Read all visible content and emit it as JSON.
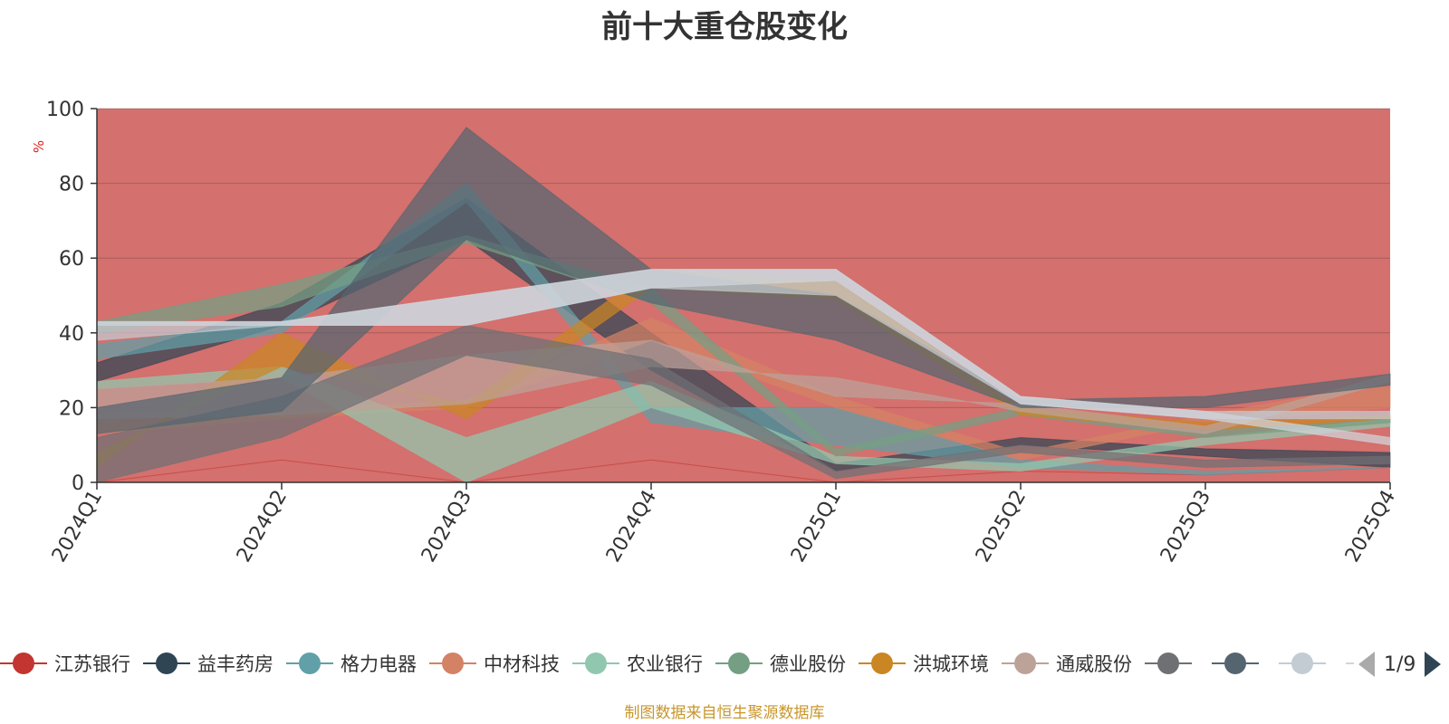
{
  "chart_data": {
    "type": "area",
    "title": "前十大重仓股变化",
    "ylabel": "%",
    "ylim": [
      0,
      100
    ],
    "yticks": [
      "0",
      "20",
      "40",
      "60",
      "80",
      "100"
    ],
    "categories": [
      "2024Q1",
      "2024Q2",
      "2024Q3",
      "2024Q4",
      "2025Q1",
      "2025Q2",
      "2025Q3",
      "2025Q4"
    ],
    "legend_position": "bottom",
    "legend_page": "1/9",
    "series": [
      {
        "name": "江苏银行",
        "color": "#c23531",
        "bounds": [
          [
            0,
            0
          ],
          [
            6,
            6
          ],
          [
            0,
            0
          ],
          [
            6,
            6
          ],
          [
            0,
            0
          ],
          [
            3,
            3
          ],
          [
            2,
            2
          ],
          [
            4,
            4
          ]
        ]
      },
      {
        "name": "益丰药房",
        "color": "#2f4554",
        "bounds": [
          [
            27,
            32
          ],
          [
            42,
            48
          ],
          [
            65,
            76
          ],
          [
            30,
            40
          ],
          [
            3,
            5
          ],
          [
            10,
            12
          ],
          [
            7,
            9
          ],
          [
            4,
            8
          ]
        ]
      },
      {
        "name": "格力电器",
        "color": "#61a0a8",
        "bounds": [
          [
            33,
            37
          ],
          [
            40,
            43
          ],
          [
            75,
            80
          ],
          [
            16,
            20
          ],
          [
            10,
            20
          ],
          [
            4,
            6
          ],
          [
            2,
            3
          ],
          [
            4,
            4
          ]
        ]
      },
      {
        "name": "中材科技",
        "color": "#d48265",
        "bounds": [
          [
            13,
            18
          ],
          [
            17,
            19
          ],
          [
            20,
            22
          ],
          [
            38,
            44
          ],
          [
            20,
            23
          ],
          [
            6,
            8
          ],
          [
            16,
            18
          ],
          [
            20,
            27
          ]
        ]
      },
      {
        "name": "农业银行",
        "color": "#91c7ae",
        "bounds": [
          [
            25,
            27
          ],
          [
            28,
            31
          ],
          [
            0,
            12
          ],
          [
            20,
            27
          ],
          [
            5,
            7
          ],
          [
            3,
            5
          ],
          [
            10,
            12
          ],
          [
            15,
            17
          ]
        ]
      },
      {
        "name": "德业股份",
        "color": "#749f83",
        "bounds": [
          [
            40,
            43
          ],
          [
            47,
            53
          ],
          [
            64,
            66
          ],
          [
            48,
            52
          ],
          [
            7,
            9
          ],
          [
            18,
            20
          ],
          [
            12,
            14
          ],
          [
            16,
            17
          ]
        ]
      },
      {
        "name": "洪城环境",
        "color": "#ca8622",
        "bounds": [
          [
            4,
            8
          ],
          [
            40,
            31
          ],
          [
            17,
            21
          ],
          [
            52,
            57
          ],
          [
            49,
            54
          ],
          [
            18,
            20
          ],
          [
            14,
            16
          ],
          [
            17,
            18
          ]
        ]
      },
      {
        "name": "通威股份",
        "color": "#bda29a",
        "bounds": [
          [
            17,
            25
          ],
          [
            18,
            28
          ],
          [
            21,
            34
          ],
          [
            31,
            38
          ],
          [
            28,
            23
          ],
          [
            19,
            21
          ],
          [
            13,
            15
          ],
          [
            27,
            29
          ]
        ]
      },
      {
        "name": "",
        "color": "#6e7074",
        "bounds": [
          [
            0,
            12
          ],
          [
            12,
            23
          ],
          [
            34,
            42
          ],
          [
            26,
            33
          ],
          [
            1,
            3
          ],
          [
            8,
            10
          ],
          [
            4,
            6
          ],
          [
            5,
            7
          ]
        ]
      },
      {
        "name": "",
        "color": "#546570",
        "bounds": [
          [
            13,
            20
          ],
          [
            19,
            28
          ],
          [
            65,
            95
          ],
          [
            48,
            57
          ],
          [
            38,
            50
          ],
          [
            20,
            22
          ],
          [
            20,
            23
          ],
          [
            26,
            29
          ]
        ]
      },
      {
        "name": "",
        "color": "#c4ccd3",
        "bounds": [
          [
            38,
            43
          ],
          [
            42,
            43
          ],
          [
            42,
            50
          ],
          [
            52,
            57
          ],
          [
            50,
            57
          ],
          [
            21,
            23
          ],
          [
            17,
            19
          ],
          [
            17,
            19
          ]
        ]
      },
      {
        "name": "",
        "color": "#d0d6dc",
        "bounds": [
          [
            42,
            43
          ],
          [
            42,
            43
          ],
          [
            42,
            50
          ],
          [
            52,
            57
          ],
          [
            54,
            57
          ],
          [
            21,
            23
          ],
          [
            17,
            19
          ],
          [
            10,
            12
          ]
        ]
      }
    ]
  },
  "footer": "制图数据来自恒生聚源数据库"
}
